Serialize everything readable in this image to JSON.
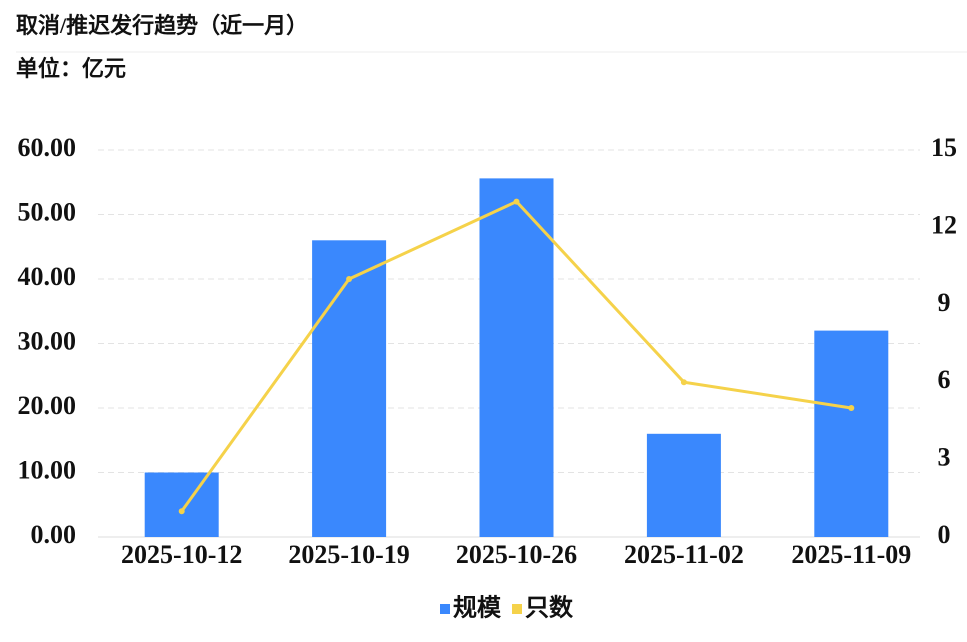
{
  "chart_data": {
    "type": "bar-line",
    "title": "取消/推迟发行趋势（近一月）",
    "subtitle": "单位：亿元",
    "categories": [
      "2025-10-12",
      "2025-10-19",
      "2025-10-26",
      "2025-11-02",
      "2025-11-09"
    ],
    "series": [
      {
        "name": "规模",
        "type": "bar",
        "color": "#3a88fd",
        "values": [
          10,
          46,
          55.6,
          16,
          32
        ]
      },
      {
        "name": "只数",
        "type": "line",
        "color": "#f5d24a",
        "axis": "y2",
        "values": [
          1,
          10,
          13,
          6,
          5
        ]
      }
    ],
    "ylim": [
      0,
      60
    ],
    "yticks": [
      {
        "value": 0,
        "label": "0.00"
      },
      {
        "value": 10,
        "label": "10.00"
      },
      {
        "value": 20,
        "label": "20.00"
      },
      {
        "value": 30,
        "label": "30.00"
      },
      {
        "value": 40,
        "label": "40.00"
      },
      {
        "value": 50,
        "label": "50.00"
      },
      {
        "value": 60,
        "label": "60.00"
      }
    ],
    "y2lim": [
      0,
      15
    ],
    "y2ticks": [
      0,
      3,
      6,
      9,
      12,
      15
    ],
    "grid": true,
    "legend": "bottom"
  }
}
